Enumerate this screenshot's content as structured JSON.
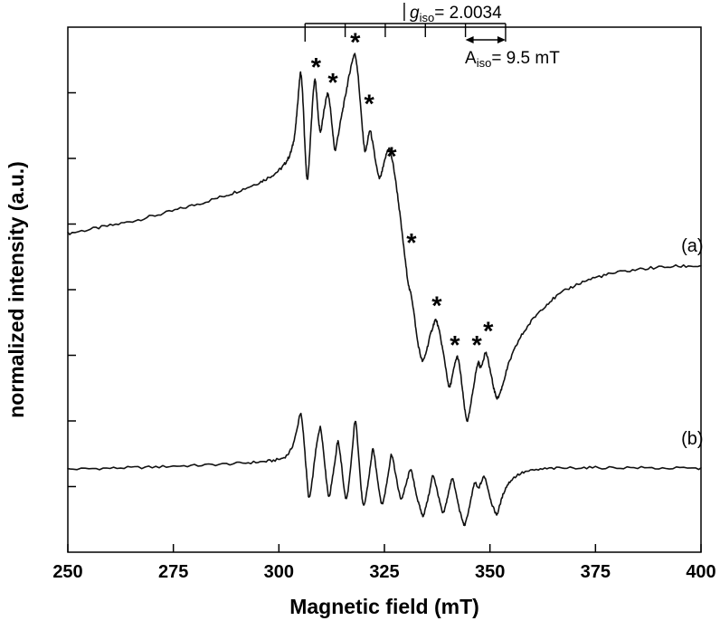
{
  "chart_data": {
    "type": "line",
    "title": "",
    "xlabel": "Magnetic field (mT)",
    "ylabel": "normalized intensity (a.u.)",
    "xlim": [
      250,
      400
    ],
    "ylim_au": [
      0,
      100
    ],
    "x_ticks": [
      250,
      275,
      300,
      325,
      350,
      375,
      400
    ],
    "y_minor_ticks_au": [
      12.5,
      25,
      37.5,
      50,
      62.5,
      75,
      87.5
    ],
    "grid": false,
    "annotations": {
      "g_label": {
        "symbol": "g",
        "sub": "iso",
        "value": "= 2.0034"
      },
      "g_iso": 2.0034,
      "g_marker_mT": 329.7,
      "A_label": {
        "symbol": "A",
        "sub": "iso",
        "value": "= 9.5 mT"
      },
      "A_iso_mT": 9.5,
      "comb_ticks_mT": [
        306.2,
        315.7,
        325.2,
        334.7,
        344.2,
        353.7
      ],
      "arrow_span_mT": [
        344.2,
        353.7
      ],
      "asterisks": [
        [
          308.8,
          92.2
        ],
        [
          312.8,
          89.3
        ],
        [
          318.1,
          97.0
        ],
        [
          321.4,
          85.3
        ],
        [
          326.7,
          75.3
        ],
        [
          331.4,
          58.8
        ],
        [
          337.4,
          46.8
        ],
        [
          341.7,
          39.3
        ],
        [
          346.9,
          39.3
        ],
        [
          349.6,
          42.0
        ]
      ]
    },
    "series": [
      {
        "name": "(a)",
        "label_at": [
          395.3,
          57.2
        ],
        "noise_au": 0.3,
        "points": [
          [
            250,
            60.7
          ],
          [
            254,
            61.3
          ],
          [
            258,
            61.9
          ],
          [
            262,
            62.5
          ],
          [
            266,
            63.2
          ],
          [
            270,
            64.0
          ],
          [
            274,
            64.8
          ],
          [
            278,
            65.7
          ],
          [
            282,
            66.6
          ],
          [
            286,
            67.6
          ],
          [
            289,
            68.4
          ],
          [
            292,
            69.3
          ],
          [
            295,
            70.3
          ],
          [
            297,
            71.1
          ],
          [
            299,
            72.1
          ],
          [
            300.5,
            73.1
          ],
          [
            301.5,
            74.1
          ],
          [
            302.5,
            75.5
          ],
          [
            303.2,
            77.3
          ],
          [
            303.8,
            79.9
          ],
          [
            304.3,
            84.0
          ],
          [
            304.8,
            89.0
          ],
          [
            305.2,
            91.2
          ],
          [
            305.7,
            86.0
          ],
          [
            306.1,
            78.5
          ],
          [
            306.5,
            72.5
          ],
          [
            306.8,
            71.0
          ],
          [
            307.2,
            75.0
          ],
          [
            307.7,
            82.0
          ],
          [
            308.2,
            88.0
          ],
          [
            308.6,
            89.8
          ],
          [
            309.0,
            86.5
          ],
          [
            309.5,
            81.5
          ],
          [
            309.9,
            80.2
          ],
          [
            310.4,
            82.5
          ],
          [
            311.0,
            85.5
          ],
          [
            311.6,
            87.2
          ],
          [
            312.2,
            84.5
          ],
          [
            312.8,
            79.5
          ],
          [
            313.3,
            76.6
          ],
          [
            313.9,
            78.8
          ],
          [
            314.6,
            82.0
          ],
          [
            315.3,
            85.0
          ],
          [
            316.0,
            88.0
          ],
          [
            316.7,
            91.0
          ],
          [
            317.4,
            93.6
          ],
          [
            318.0,
            94.8
          ],
          [
            318.6,
            92.0
          ],
          [
            319.2,
            86.5
          ],
          [
            319.8,
            80.5
          ],
          [
            320.4,
            76.4
          ],
          [
            321.0,
            78.2
          ],
          [
            321.6,
            80.3
          ],
          [
            322.3,
            77.5
          ],
          [
            323.0,
            74.0
          ],
          [
            323.8,
            71.2
          ],
          [
            324.6,
            73.0
          ],
          [
            325.4,
            75.6
          ],
          [
            326.1,
            76.9
          ],
          [
            326.9,
            74.5
          ],
          [
            327.7,
            70.5
          ],
          [
            328.5,
            65.5
          ],
          [
            329.3,
            60.0
          ],
          [
            330.1,
            54.5
          ],
          [
            330.8,
            50.5
          ],
          [
            331.4,
            48.8
          ],
          [
            332.0,
            45.5
          ],
          [
            332.7,
            41.0
          ],
          [
            333.4,
            38.0
          ],
          [
            334.1,
            36.4
          ],
          [
            334.9,
            38.2
          ],
          [
            335.7,
            40.8
          ],
          [
            336.5,
            43.0
          ],
          [
            337.2,
            44.2
          ],
          [
            338.0,
            42.0
          ],
          [
            338.8,
            38.6
          ],
          [
            339.6,
            34.8
          ],
          [
            340.3,
            31.4
          ],
          [
            341.0,
            33.2
          ],
          [
            341.7,
            35.8
          ],
          [
            342.3,
            37.2
          ],
          [
            342.9,
            34.8
          ],
          [
            343.5,
            30.8
          ],
          [
            344.1,
            26.8
          ],
          [
            344.7,
            25.1
          ],
          [
            345.4,
            27.8
          ],
          [
            346.1,
            31.5
          ],
          [
            346.8,
            34.8
          ],
          [
            347.3,
            36.1
          ],
          [
            347.8,
            35.2
          ],
          [
            348.4,
            36.6
          ],
          [
            349.0,
            38.0
          ],
          [
            349.7,
            36.0
          ],
          [
            350.4,
            33.2
          ],
          [
            351.1,
            30.6
          ],
          [
            351.8,
            29.4
          ],
          [
            352.6,
            30.8
          ],
          [
            353.4,
            33.0
          ],
          [
            354.4,
            35.8
          ],
          [
            355.6,
            38.2
          ],
          [
            357.0,
            40.6
          ],
          [
            358.6,
            42.6
          ],
          [
            360.4,
            44.6
          ],
          [
            362.4,
            46.4
          ],
          [
            364.6,
            48.0
          ],
          [
            367.0,
            49.4
          ],
          [
            369.6,
            50.6
          ],
          [
            372.4,
            51.6
          ],
          [
            375.4,
            52.4
          ],
          [
            378.6,
            53.0
          ],
          [
            382.0,
            53.5
          ],
          [
            385.6,
            53.9
          ],
          [
            389.4,
            54.2
          ],
          [
            393.4,
            54.4
          ],
          [
            397.0,
            54.5
          ],
          [
            400,
            54.5
          ]
        ]
      },
      {
        "name": "(b)",
        "label_at": [
          395.3,
          20.5
        ],
        "noise_au": 0.25,
        "points": [
          [
            250,
            15.8
          ],
          [
            255,
            15.9
          ],
          [
            260,
            16.0
          ],
          [
            265,
            16.1
          ],
          [
            270,
            16.2
          ],
          [
            275,
            16.4
          ],
          [
            280,
            16.5
          ],
          [
            285,
            16.7
          ],
          [
            290,
            16.9
          ],
          [
            294,
            17.1
          ],
          [
            297,
            17.3
          ],
          [
            299.5,
            17.6
          ],
          [
            301.5,
            18.2
          ],
          [
            303.0,
            19.8
          ],
          [
            304.2,
            23.0
          ],
          [
            305.1,
            26.4
          ],
          [
            305.8,
            22.5
          ],
          [
            306.5,
            15.5
          ],
          [
            307.1,
            10.4
          ],
          [
            307.8,
            13.0
          ],
          [
            308.6,
            18.5
          ],
          [
            309.4,
            22.5
          ],
          [
            309.9,
            23.6
          ],
          [
            310.6,
            19.0
          ],
          [
            311.3,
            13.5
          ],
          [
            311.9,
            10.6
          ],
          [
            312.6,
            13.8
          ],
          [
            313.4,
            18.0
          ],
          [
            314.0,
            21.0
          ],
          [
            314.7,
            17.5
          ],
          [
            315.4,
            12.5
          ],
          [
            316.0,
            10.2
          ],
          [
            316.8,
            14.5
          ],
          [
            317.5,
            20.5
          ],
          [
            318.1,
            25.0
          ],
          [
            318.8,
            19.5
          ],
          [
            319.5,
            12.0
          ],
          [
            320.1,
            8.8
          ],
          [
            320.9,
            12.0
          ],
          [
            321.7,
            16.5
          ],
          [
            322.3,
            19.5
          ],
          [
            323.1,
            15.5
          ],
          [
            323.9,
            11.0
          ],
          [
            324.5,
            9.2
          ],
          [
            325.3,
            12.0
          ],
          [
            326.1,
            16.0
          ],
          [
            326.7,
            18.6
          ],
          [
            327.5,
            15.5
          ],
          [
            328.3,
            12.0
          ],
          [
            329.0,
            10.2
          ],
          [
            329.8,
            12.0
          ],
          [
            330.6,
            14.3
          ],
          [
            331.2,
            15.8
          ],
          [
            332.0,
            13.2
          ],
          [
            332.8,
            10.2
          ],
          [
            333.6,
            8.0
          ],
          [
            334.2,
            7.0
          ],
          [
            335.0,
            9.2
          ],
          [
            335.8,
            12.0
          ],
          [
            336.5,
            14.6
          ],
          [
            337.3,
            12.4
          ],
          [
            338.1,
            9.6
          ],
          [
            338.9,
            7.4
          ],
          [
            339.7,
            9.6
          ],
          [
            340.5,
            12.4
          ],
          [
            341.1,
            14.1
          ],
          [
            341.9,
            11.4
          ],
          [
            342.7,
            8.4
          ],
          [
            343.5,
            6.0
          ],
          [
            344.1,
            5.3
          ],
          [
            344.9,
            7.8
          ],
          [
            345.7,
            10.8
          ],
          [
            346.4,
            13.2
          ],
          [
            347.2,
            12.2
          ],
          [
            348.0,
            13.4
          ],
          [
            348.7,
            14.4
          ],
          [
            349.5,
            12.2
          ],
          [
            350.3,
            9.6
          ],
          [
            351.1,
            7.9
          ],
          [
            351.7,
            7.3
          ],
          [
            352.5,
            9.4
          ],
          [
            353.4,
            11.6
          ],
          [
            354.5,
            13.2
          ],
          [
            356.0,
            14.4
          ],
          [
            358.0,
            15.2
          ],
          [
            360.5,
            15.6
          ],
          [
            363.5,
            15.9
          ],
          [
            367,
            16.0
          ],
          [
            371,
            16.1
          ],
          [
            375,
            16.1
          ],
          [
            380,
            16.1
          ],
          [
            385,
            16.1
          ],
          [
            390,
            16.0
          ],
          [
            395,
            16.0
          ],
          [
            400,
            15.9
          ]
        ]
      }
    ]
  }
}
